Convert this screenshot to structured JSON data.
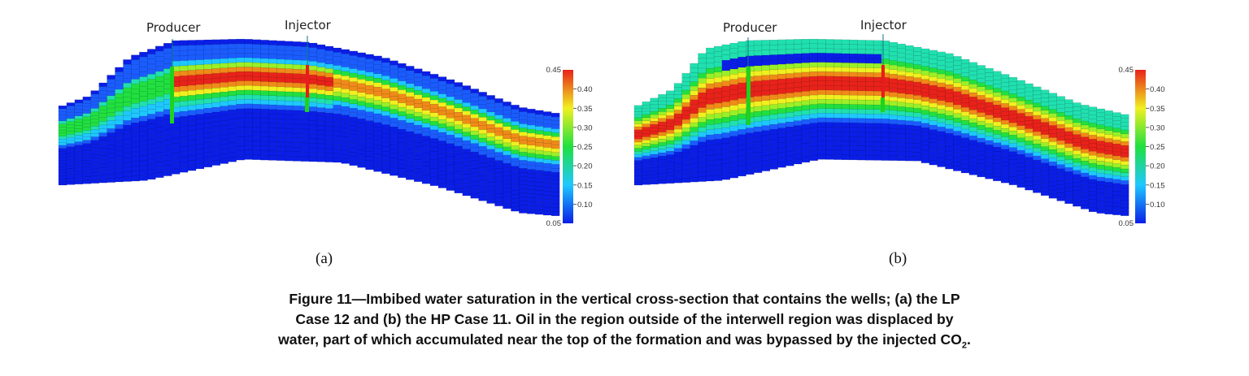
{
  "panels": [
    {
      "id": "a",
      "sublabel": "(a)",
      "producer_label": "Producer",
      "injector_label": "Injector",
      "colorbar": {
        "min_label": "0.05",
        "max_label": "0.45",
        "ticks": [
          "0.40",
          "0.35",
          "0.30",
          "0.25",
          "0.20",
          "0.15",
          "0.10"
        ]
      }
    },
    {
      "id": "b",
      "sublabel": "(b)",
      "producer_label": "Producer",
      "injector_label": "Injector",
      "colorbar": {
        "min_label": "0.05",
        "max_label": "0.45",
        "ticks": [
          "0.40",
          "0.35",
          "0.30",
          "0.25",
          "0.20",
          "0.15",
          "0.10"
        ]
      }
    }
  ],
  "caption": {
    "line1": "Figure 11—Imbibed water saturation in the vertical cross-section that contains the wells; (a) the LP",
    "line2": "Case 12 and (b) the HP Case 11. Oil in the region outside of the interwell region was displaced by",
    "line3_pre": "water, part of which accumulated near the top of the formation and was bypassed by the injected CO",
    "line3_sub": "2",
    "line3_post": "."
  },
  "colors": {
    "blue": "#0a1ee8",
    "cyan": "#1ec8ff",
    "green": "#20e040",
    "yellow": "#f0f020",
    "red": "#e8221a",
    "well_green": "#1ed21e",
    "well_red": "#e81c1c"
  }
}
